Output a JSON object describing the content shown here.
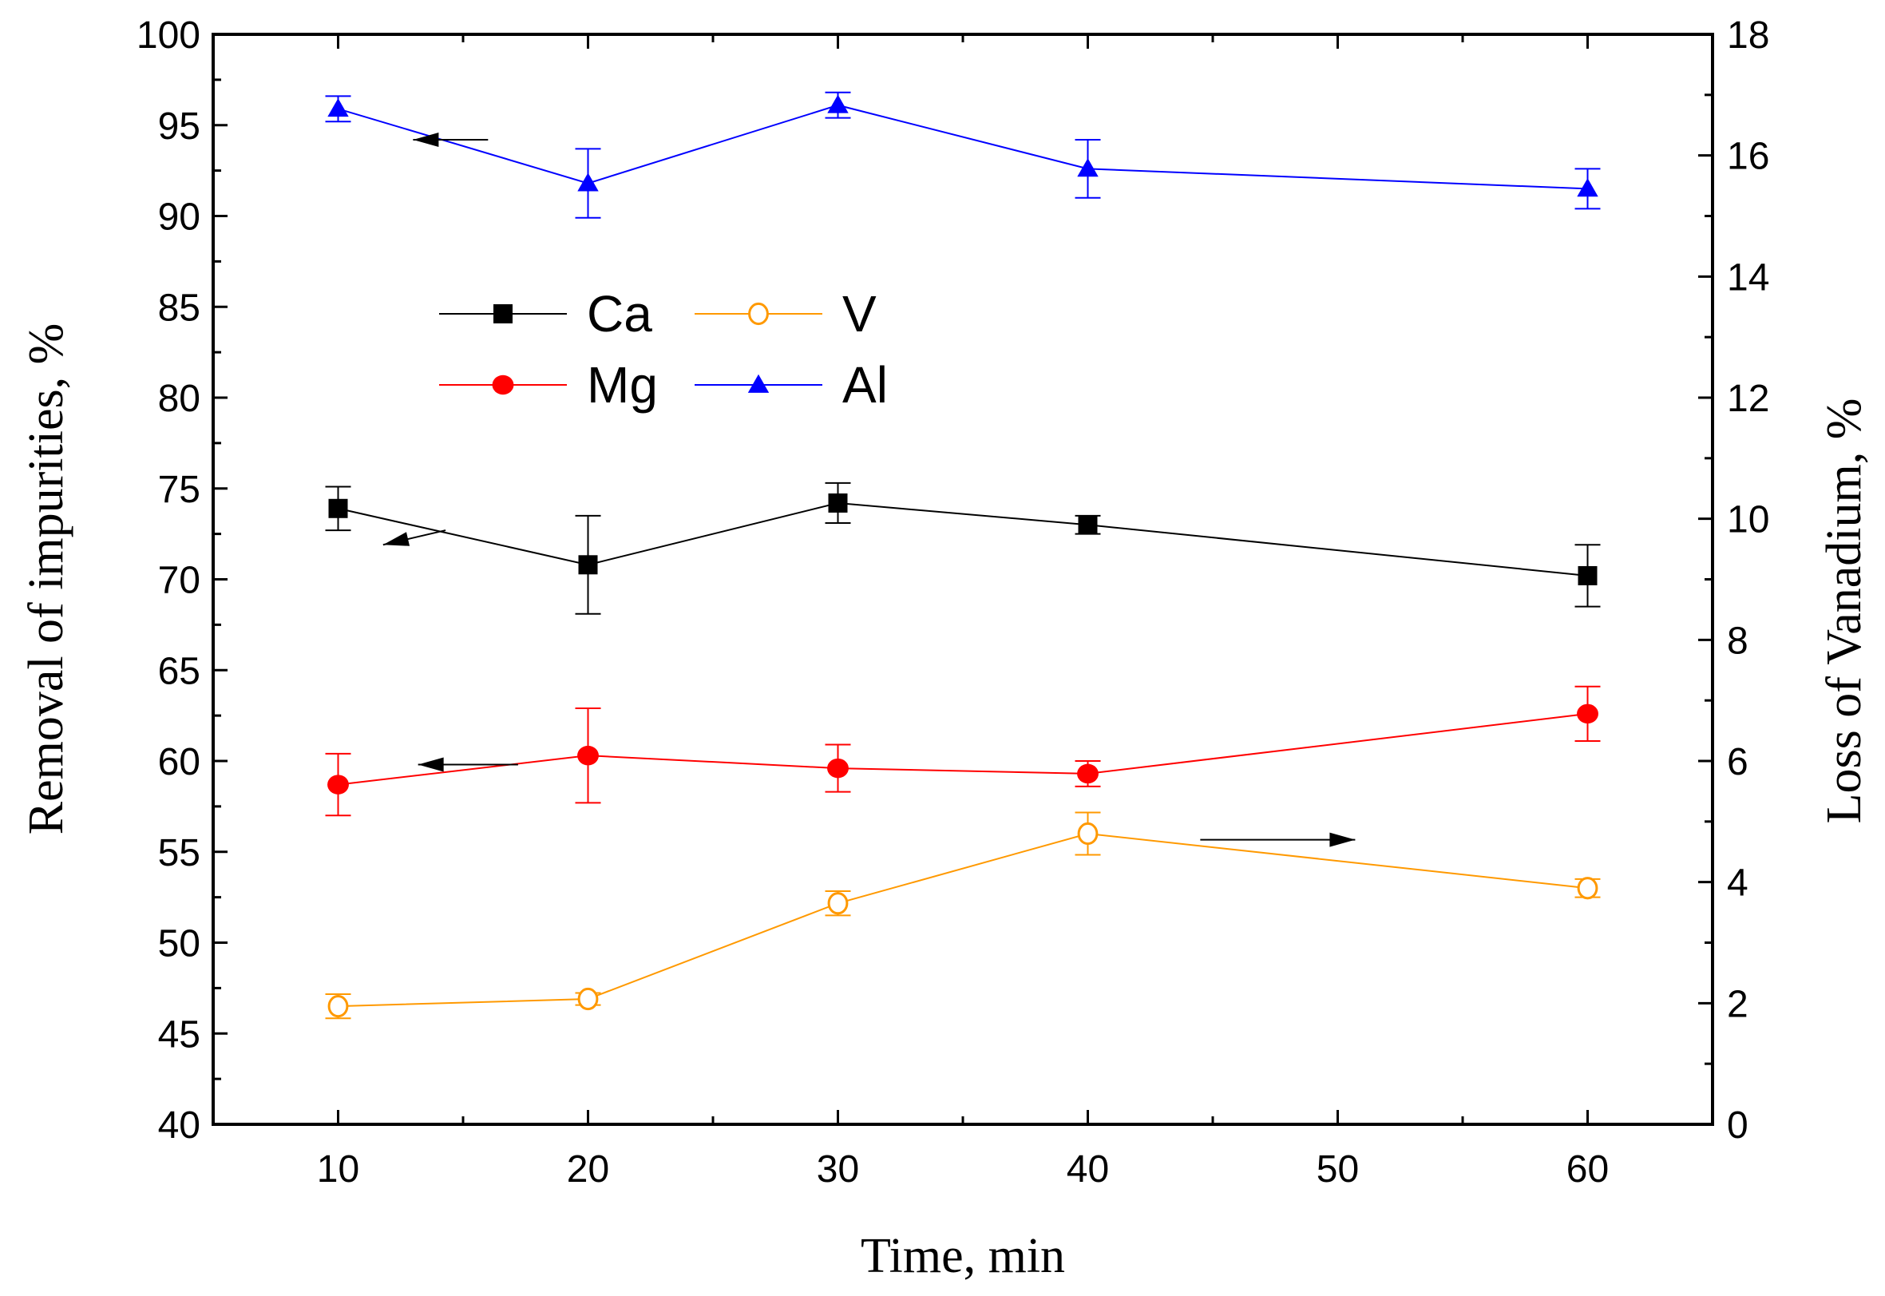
{
  "chart_data": {
    "type": "line",
    "title": "",
    "xlabel": "Time, min",
    "ylabel_left": "Removal of impurities, %",
    "ylabel_right": "Loss of Vanadium, %",
    "xlim": [
      5,
      65
    ],
    "ylim_left": [
      40,
      100
    ],
    "ylim_right": [
      0,
      18
    ],
    "x_ticks": [
      "10",
      "20",
      "30",
      "40",
      "50",
      "60"
    ],
    "y_left_ticks": [
      "40",
      "45",
      "50",
      "55",
      "60",
      "65",
      "70",
      "75",
      "80",
      "85",
      "90",
      "95",
      "100"
    ],
    "y_right_ticks": [
      "0",
      "2",
      "4",
      "6",
      "8",
      "10",
      "12",
      "14",
      "16",
      "18"
    ],
    "grid": false,
    "legend_position": "upper-left",
    "x": [
      10,
      20,
      30,
      40,
      60
    ],
    "series": [
      {
        "name": "Ca",
        "axis": "left",
        "marker": "square",
        "color": "#000000",
        "values": [
          73.9,
          70.8,
          74.2,
          73.0,
          70.2
        ],
        "errors": [
          1.2,
          2.7,
          1.1,
          0.5,
          1.7
        ]
      },
      {
        "name": "Mg",
        "axis": "left",
        "marker": "circle",
        "color": "#ff0000",
        "values": [
          58.7,
          60.3,
          59.6,
          59.3,
          62.6
        ],
        "errors": [
          1.7,
          2.6,
          1.3,
          0.7,
          1.5
        ]
      },
      {
        "name": "Al",
        "axis": "left",
        "marker": "triangle",
        "color": "#0000ff",
        "values": [
          95.9,
          91.8,
          96.1,
          92.6,
          91.5
        ],
        "errors": [
          0.7,
          1.9,
          0.7,
          1.6,
          1.1
        ]
      },
      {
        "name": "V",
        "axis": "right",
        "marker": "open-circle",
        "color": "#ff9900",
        "values": [
          1.95,
          2.07,
          3.65,
          4.8,
          3.9
        ],
        "errors": [
          0.2,
          0.1,
          0.2,
          0.35,
          0.15
        ]
      }
    ],
    "annotations": [
      {
        "type": "arrow",
        "direction": "left",
        "series": "Al"
      },
      {
        "type": "arrow",
        "direction": "left",
        "series": "Ca"
      },
      {
        "type": "arrow",
        "direction": "left",
        "series": "Mg"
      },
      {
        "type": "arrow",
        "direction": "right",
        "series": "V"
      }
    ]
  }
}
